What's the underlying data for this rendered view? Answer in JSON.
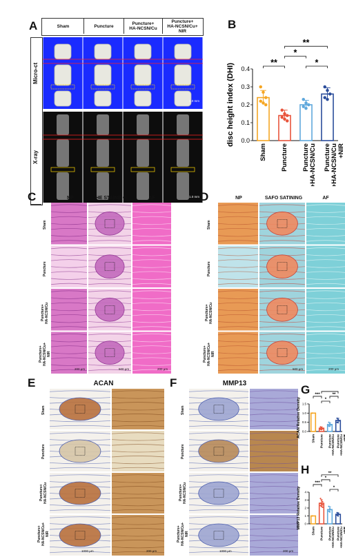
{
  "panels": {
    "A": {
      "label": "A",
      "columns": [
        "Sham",
        "Puncture",
        "Puncture+\nHA-NCSN/Cu",
        "Puncture+\nHA-NCSN/Cu+\nNIR"
      ],
      "rows": [
        "Micro-ct",
        "X-ray"
      ],
      "scale_microct": "1.0 mm",
      "scale_xray": "1.0 mm",
      "colors": {
        "microct_bg": "#1a2bff",
        "xray_bg": "#0d0d0d"
      }
    },
    "B": {
      "label": "B"
    },
    "C": {
      "label": "C",
      "columns": [
        "NP",
        "HE STAINING",
        "AF"
      ],
      "rows": [
        "Sham",
        "Puncture",
        "Puncture+\nHA-NCSN/Cu",
        "Puncture+\nHA-NCSN/Cu+\nNIR"
      ],
      "scales": [
        "200 μm",
        "500 μm",
        "200 μm"
      ]
    },
    "D": {
      "label": "D",
      "columns": [
        "NP",
        "SAFO SATINING",
        "AF"
      ],
      "rows": [
        "Sham",
        "Puncture",
        "Puncture+\nHA-NCSN/Cu",
        "Puncture+\nHA-NCSN/Cu+\nNIR"
      ],
      "scales": [
        "500 μm",
        "200 μm"
      ]
    },
    "E": {
      "label": "E",
      "title": "ACAN",
      "rows": [
        "Sham",
        "Puncture",
        "Puncture+\nHA-NCSN/Cu",
        "Puncture+\nHA-NCSN/Cu+\nNIR"
      ],
      "scales": [
        "1000 μm",
        "200 μm"
      ]
    },
    "F": {
      "label": "F",
      "title": "MMP13",
      "rows": [
        "Sham",
        "Puncture",
        "Puncture+\nHA-NCSN/Cu",
        "Puncture+\nHA-NCSN/Cu+\nNIR"
      ],
      "scales": [
        "1000 μm",
        "200 μm"
      ]
    },
    "G": {
      "label": "G"
    },
    "H": {
      "label": "H"
    }
  },
  "chart_data": [
    {
      "id": "B",
      "type": "bar",
      "ylabel": "disc height index (DHI)",
      "categories": [
        "Sham",
        "Puncture",
        "Puncture\n+HA-NCSN/Cu",
        "Puncture\n+HA-NCSN/Cu\n+NIR"
      ],
      "values": [
        0.24,
        0.14,
        0.2,
        0.26
      ],
      "errors": [
        0.04,
        0.03,
        0.025,
        0.035
      ],
      "points": [
        [
          0.3,
          0.27,
          0.24,
          0.22,
          0.21,
          0.2
        ],
        [
          0.17,
          0.15,
          0.14,
          0.13,
          0.12,
          0.11
        ],
        [
          0.23,
          0.21,
          0.2,
          0.19,
          0.18
        ],
        [
          0.3,
          0.28,
          0.26,
          0.24,
          0.23
        ]
      ],
      "colors": [
        "#f5a623",
        "#e8543c",
        "#5fa8dc",
        "#2b4d9b"
      ],
      "ylim": [
        0,
        0.4
      ],
      "yticks": [
        0.0,
        0.1,
        0.2,
        0.3,
        0.4
      ],
      "brackets": [
        {
          "from": 0,
          "to": 1,
          "label": "**",
          "level": 0
        },
        {
          "from": 1,
          "to": 2,
          "label": "*",
          "level": 1
        },
        {
          "from": 2,
          "to": 3,
          "label": "*",
          "level": 0
        },
        {
          "from": 1,
          "to": 3,
          "label": "**",
          "level": 2
        }
      ]
    },
    {
      "id": "G",
      "type": "bar",
      "ylabel": "ACAN Relative Density",
      "categories": [
        "Sham",
        "Puncture",
        "Puncture\n+HA-NCSN/Cu",
        "Puncture\n+HA-NCSN/Cu\n+NIR"
      ],
      "values": [
        1.0,
        0.18,
        0.38,
        0.6
      ],
      "errors": [
        0.0,
        0.07,
        0.1,
        0.12
      ],
      "points": [
        [
          1.0
        ],
        [
          0.25,
          0.2,
          0.15,
          0.12,
          0.1
        ],
        [
          0.5,
          0.42,
          0.36,
          0.3,
          0.28
        ],
        [
          0.72,
          0.65,
          0.58,
          0.5,
          0.48
        ]
      ],
      "colors": [
        "#f5a623",
        "#e8543c",
        "#5fa8dc",
        "#2b4d9b"
      ],
      "ylim": [
        0,
        1.5
      ],
      "yticks": [
        0.0,
        0.5,
        1.0,
        1.5
      ],
      "brackets": [
        {
          "from": 0,
          "to": 1,
          "label": "***",
          "level": 1
        },
        {
          "from": 1,
          "to": 2,
          "label": "*",
          "level": 0
        },
        {
          "from": 2,
          "to": 3,
          "label": "**",
          "level": 1
        },
        {
          "from": 1,
          "to": 3,
          "label": "**",
          "level": 2
        }
      ]
    },
    {
      "id": "H",
      "type": "bar",
      "ylabel": "MMP13 Relative Density",
      "categories": [
        "Sham",
        "Puncture",
        "Puncture\n+HA-NCSN/Cu",
        "Puncture\n+HA-NCSN/Cu\n+NIR"
      ],
      "values": [
        1.0,
        2.6,
        1.8,
        1.2
      ],
      "errors": [
        0.0,
        0.45,
        0.35,
        0.2
      ],
      "points": [
        [
          1.0
        ],
        [
          3.2,
          3.0,
          2.8,
          2.6,
          2.5,
          2.4,
          2.3,
          2.2,
          2.1
        ],
        [
          2.2,
          1.9,
          1.8,
          1.6,
          1.5
        ],
        [
          1.4,
          1.3,
          1.2,
          1.1,
          1.0
        ]
      ],
      "colors": [
        "#f5a623",
        "#e8543c",
        "#5fa8dc",
        "#2b4d9b"
      ],
      "ylim": [
        0,
        4
      ],
      "yticks": [
        0,
        1,
        2,
        3,
        4
      ],
      "brackets": [
        {
          "from": 0,
          "to": 1,
          "label": "***",
          "level": 1
        },
        {
          "from": 1,
          "to": 2,
          "label": "*",
          "level": 2
        },
        {
          "from": 1,
          "to": 3,
          "label": "**",
          "level": 3
        },
        {
          "from": 2,
          "to": 3,
          "label": "*",
          "level": 0
        }
      ]
    }
  ]
}
